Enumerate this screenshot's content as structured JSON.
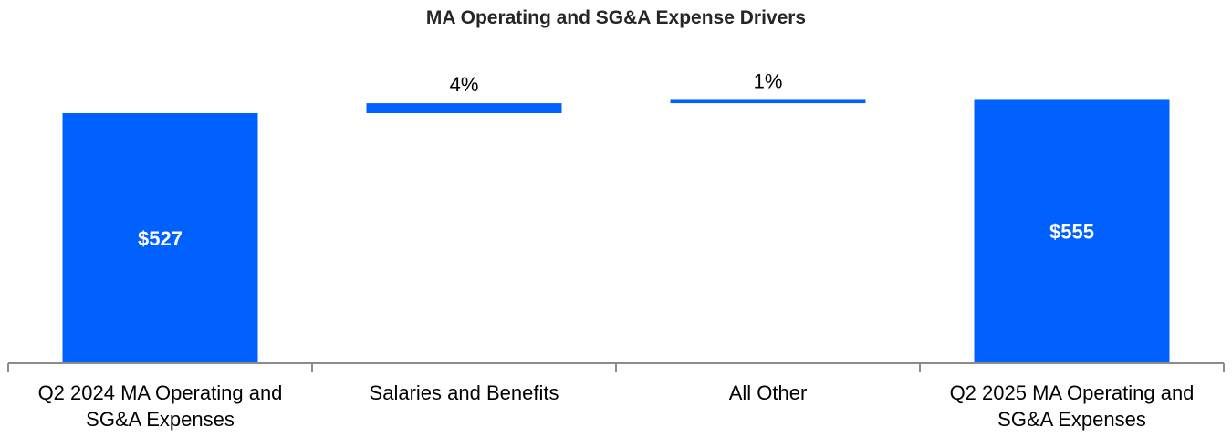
{
  "chart_data": {
    "type": "bar",
    "subtype": "waterfall",
    "title": "MA Operating and SG&A Expense Drivers",
    "categories": [
      [
        "Q2 2024 MA Operating and",
        "SG&A Expenses"
      ],
      [
        "Salaries and Benefits"
      ],
      [
        "All Other"
      ],
      [
        "Q2 2025 MA Operating and",
        "SG&A Expenses"
      ]
    ],
    "steps": [
      {
        "kind": "total",
        "value": 527,
        "label": "$527"
      },
      {
        "kind": "delta",
        "value": 21,
        "label": "4%"
      },
      {
        "kind": "delta",
        "value": 7,
        "label": "1%"
      },
      {
        "kind": "total",
        "value": 555,
        "label": "$555"
      }
    ],
    "ylim": [
      0,
      610
    ],
    "grid": false,
    "bar_color": "#0061FF",
    "axis_color": "#8C8C8C"
  }
}
